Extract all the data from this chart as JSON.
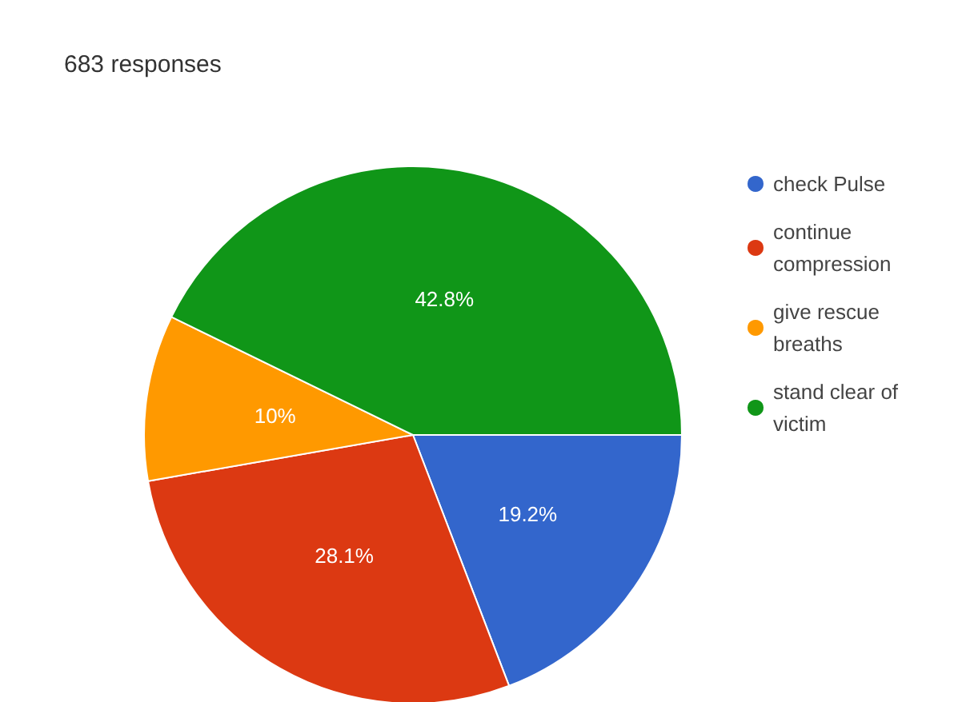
{
  "chart_data": {
    "type": "pie",
    "title": "683 responses",
    "categories": [
      "check Pulse",
      "continue compression",
      "give rescue breaths",
      "stand clear of victim"
    ],
    "values": [
      19.2,
      28.1,
      10,
      42.8
    ],
    "colors": [
      "#3366cc",
      "#dc3912",
      "#ff9900",
      "#109618"
    ],
    "value_labels": [
      "19.2%",
      "28.1%",
      "10%",
      "42.8%"
    ],
    "legend": "top right"
  }
}
